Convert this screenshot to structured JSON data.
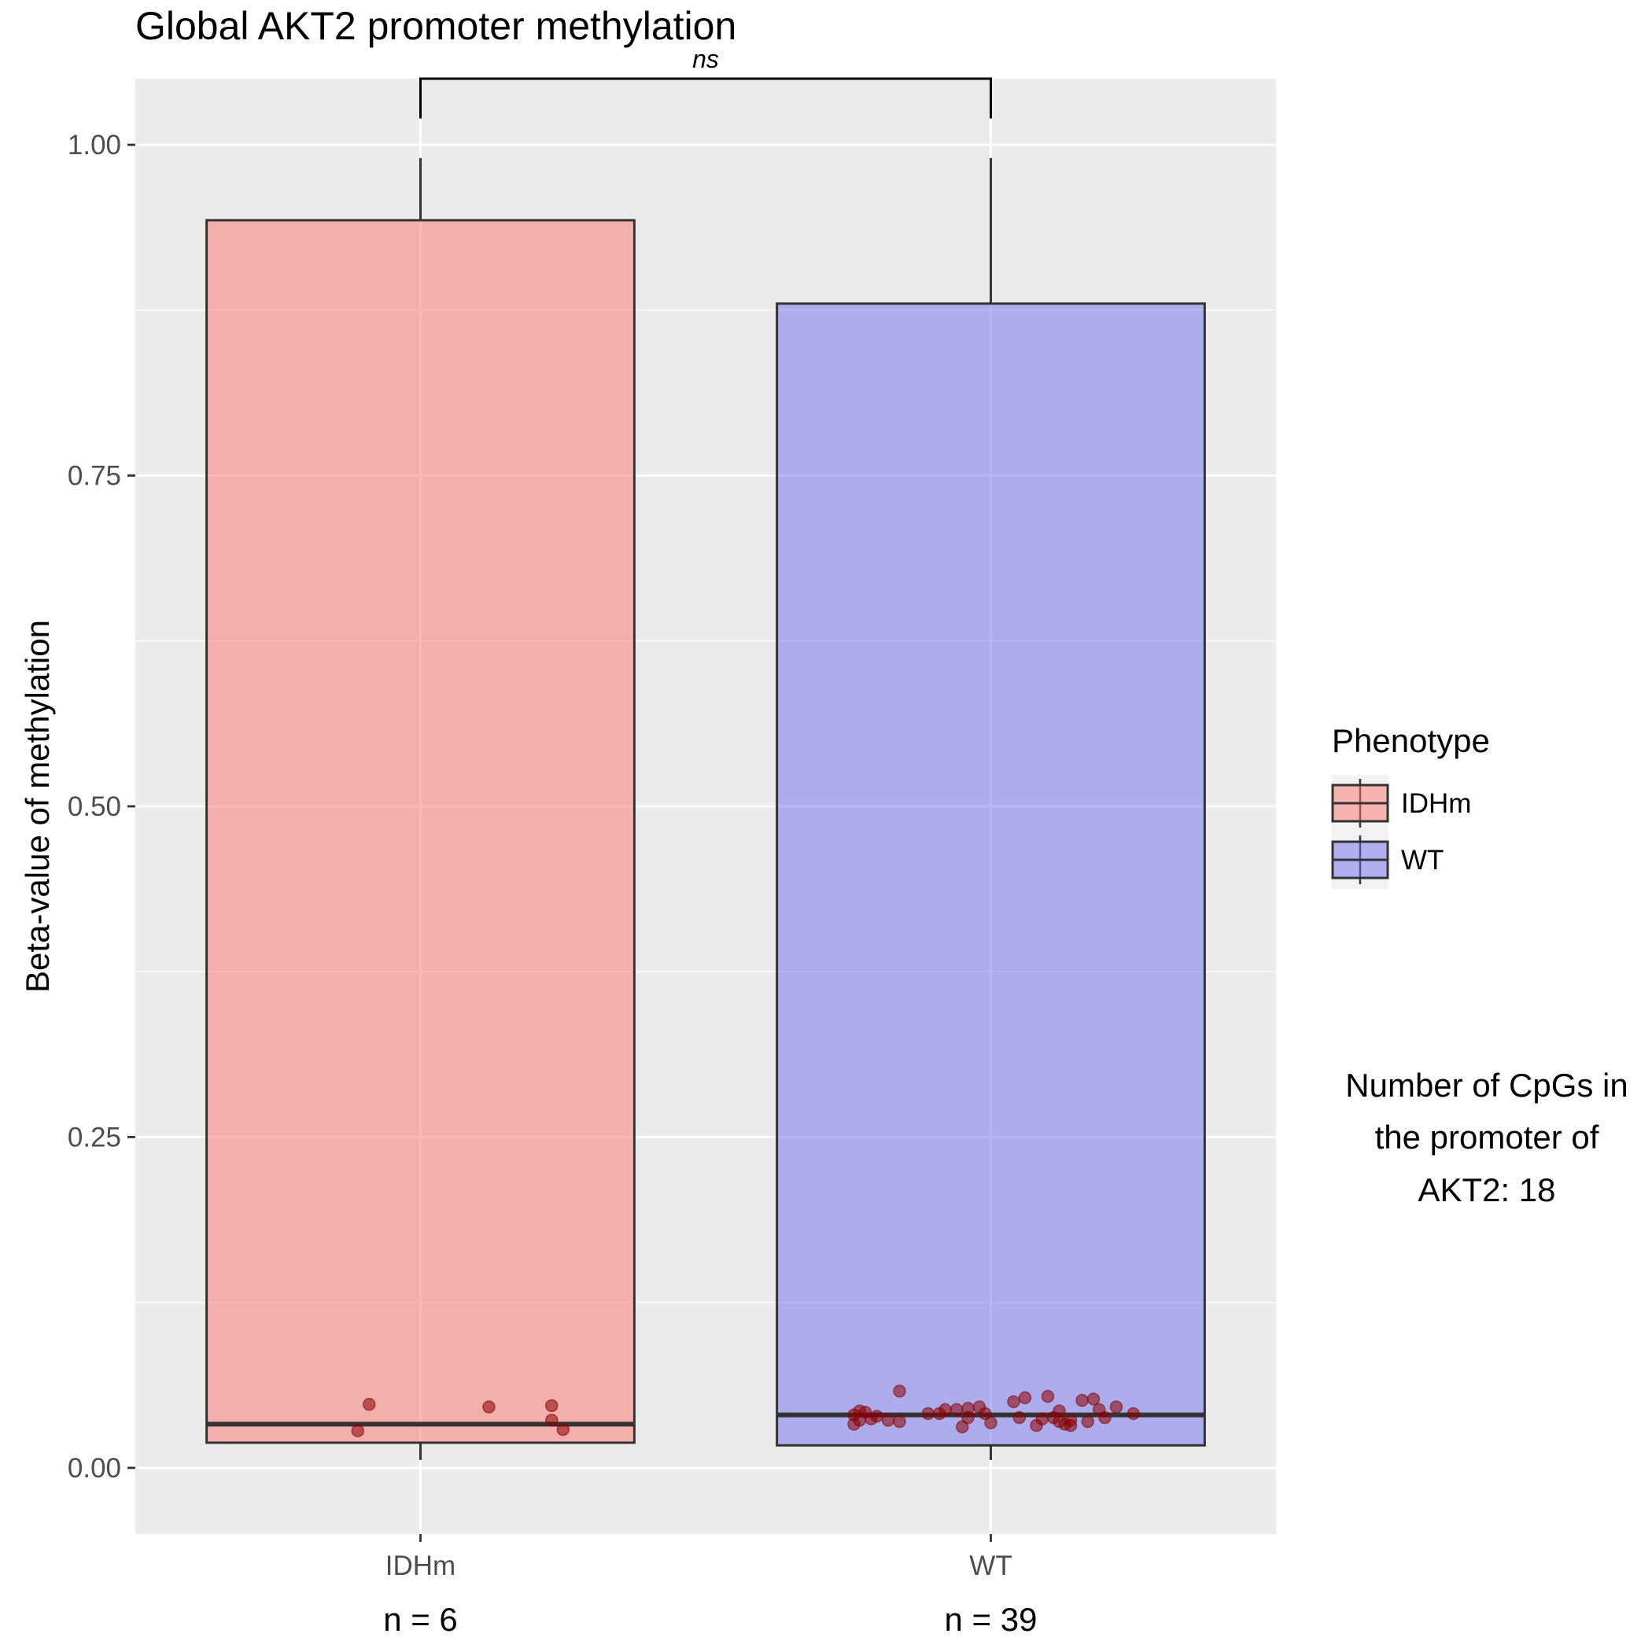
{
  "chart_data": {
    "type": "boxplot",
    "title": "Global AKT2 promoter methylation",
    "xlabel": "",
    "ylabel": "Beta-value of methylation",
    "ylim": [
      -0.05,
      1.05
    ],
    "yticks": [
      0.0,
      0.25,
      0.5,
      0.75,
      1.0
    ],
    "ytick_labels": [
      "0.00",
      "0.25",
      "0.50",
      "0.75",
      "1.00"
    ],
    "grid": true,
    "categories": [
      "IDHm",
      "WT"
    ],
    "n_labels": [
      "n = 6",
      "n = 39"
    ],
    "significance": {
      "label": "ns",
      "bracket_y": 1.05,
      "from": "IDHm",
      "to": "WT"
    },
    "legend": {
      "title": "Phenotype",
      "position": "right",
      "entries": [
        "IDHm",
        "WT"
      ]
    },
    "annotation": [
      "Number of CpGs in",
      "the promoter of",
      "AKT2: 18"
    ],
    "colors": {
      "IDHm": "#f8766d",
      "WT": "#6f6ff0",
      "points": "#8b0000",
      "panel": "#ebebeb",
      "grid": "#ffffff"
    },
    "series": [
      {
        "name": "IDHm",
        "q1": 0.019,
        "median": 0.033,
        "q3": 0.943,
        "whisker_low": 0.006,
        "whisker_high": 0.99,
        "points": [
          {
            "x": 0.89,
            "y": 0.028
          },
          {
            "x": 0.91,
            "y": 0.048
          },
          {
            "x": 1.12,
            "y": 0.046
          },
          {
            "x": 1.23,
            "y": 0.047
          },
          {
            "x": 1.23,
            "y": 0.036
          },
          {
            "x": 1.25,
            "y": 0.029
          }
        ]
      },
      {
        "name": "WT",
        "q1": 0.017,
        "median": 0.04,
        "q3": 0.88,
        "whisker_low": 0.006,
        "whisker_high": 0.99,
        "points": [
          {
            "x": 1.76,
            "y": 0.033
          },
          {
            "x": 1.76,
            "y": 0.04
          },
          {
            "x": 1.77,
            "y": 0.043
          },
          {
            "x": 1.77,
            "y": 0.036
          },
          {
            "x": 1.78,
            "y": 0.042
          },
          {
            "x": 1.79,
            "y": 0.037
          },
          {
            "x": 1.8,
            "y": 0.039
          },
          {
            "x": 1.82,
            "y": 0.036
          },
          {
            "x": 1.84,
            "y": 0.035
          },
          {
            "x": 1.84,
            "y": 0.058
          },
          {
            "x": 1.89,
            "y": 0.041
          },
          {
            "x": 1.91,
            "y": 0.041
          },
          {
            "x": 1.92,
            "y": 0.044
          },
          {
            "x": 1.94,
            "y": 0.044
          },
          {
            "x": 1.95,
            "y": 0.031
          },
          {
            "x": 1.96,
            "y": 0.038
          },
          {
            "x": 1.96,
            "y": 0.045
          },
          {
            "x": 1.98,
            "y": 0.046
          },
          {
            "x": 1.99,
            "y": 0.041
          },
          {
            "x": 2.0,
            "y": 0.034
          },
          {
            "x": 2.04,
            "y": 0.05
          },
          {
            "x": 2.05,
            "y": 0.038
          },
          {
            "x": 2.06,
            "y": 0.053
          },
          {
            "x": 2.08,
            "y": 0.032
          },
          {
            "x": 2.09,
            "y": 0.037
          },
          {
            "x": 2.1,
            "y": 0.054
          },
          {
            "x": 2.11,
            "y": 0.038
          },
          {
            "x": 2.12,
            "y": 0.035
          },
          {
            "x": 2.12,
            "y": 0.043
          },
          {
            "x": 2.13,
            "y": 0.033
          },
          {
            "x": 2.14,
            "y": 0.036
          },
          {
            "x": 2.14,
            "y": 0.032
          },
          {
            "x": 2.16,
            "y": 0.051
          },
          {
            "x": 2.17,
            "y": 0.035
          },
          {
            "x": 2.18,
            "y": 0.052
          },
          {
            "x": 2.19,
            "y": 0.044
          },
          {
            "x": 2.2,
            "y": 0.038
          },
          {
            "x": 2.22,
            "y": 0.046
          },
          {
            "x": 2.25,
            "y": 0.041
          }
        ]
      }
    ]
  }
}
